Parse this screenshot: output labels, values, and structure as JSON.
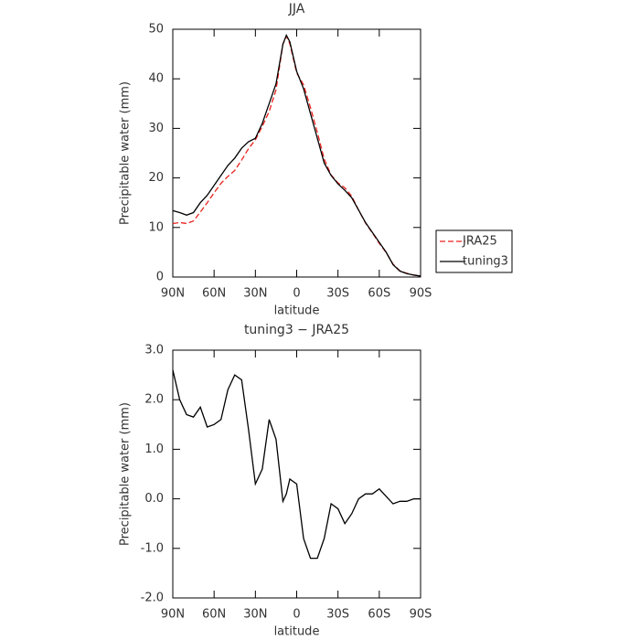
{
  "chart_data": [
    {
      "type": "line",
      "title": "JJA",
      "xlabel": "latitude",
      "ylabel": "Precipitable water (mm)",
      "x": [
        90,
        85,
        80,
        75,
        70,
        65,
        60,
        55,
        50,
        45,
        40,
        35,
        30,
        25,
        20,
        15,
        10,
        7.5,
        5,
        0,
        -5,
        -10,
        -15,
        -20,
        -25,
        -30,
        -35,
        -40,
        -45,
        -50,
        -55,
        -60,
        -65,
        -70,
        -75,
        -80,
        -85,
        -90
      ],
      "series": [
        {
          "name": "JRA25",
          "color": "#e8221c",
          "line_style": "dashed",
          "values": [
            10.8,
            11,
            10.8,
            11.3,
            13.1,
            15,
            17,
            18.9,
            20.3,
            21.5,
            23.6,
            25.9,
            27.7,
            30.4,
            33.4,
            37.8,
            47,
            48.6,
            47.1,
            41.2,
            38.8,
            34.2,
            29.2,
            23.8,
            20.6,
            19,
            18,
            16.3,
            13.5,
            10.9,
            8.9,
            6.8,
            4.95,
            2.6,
            1.25,
            0.75,
            0.4,
            0.2
          ]
        },
        {
          "name": "tuning3",
          "color": "#000000",
          "line_style": "solid",
          "values": [
            13.4,
            13,
            12.5,
            13,
            15,
            16.5,
            18.5,
            20.5,
            22.5,
            24,
            26,
            27.3,
            28,
            31,
            35,
            39,
            47,
            48.8,
            47.5,
            41.5,
            38,
            33,
            28,
            23,
            20.5,
            18.8,
            17.5,
            16,
            13.5,
            11,
            9,
            7,
            5,
            2.5,
            1.2,
            0.7,
            0.4,
            0.2
          ]
        }
      ],
      "xlim": [
        90,
        -90
      ],
      "xticks": [
        {
          "value": 90,
          "label": "90N"
        },
        {
          "value": 60,
          "label": "60N"
        },
        {
          "value": 30,
          "label": "30N"
        },
        0,
        {
          "value": -30,
          "label": "30S"
        },
        {
          "value": -60,
          "label": "60S"
        },
        {
          "value": -90,
          "label": "90S"
        }
      ],
      "ylim": [
        0,
        50
      ],
      "yticks": [
        0,
        10,
        20,
        30,
        40,
        50
      ],
      "legend": "right"
    },
    {
      "type": "line",
      "title": "tuning3 − JRA25",
      "xlabel": "latitude",
      "ylabel": "Precipitable water (mm)",
      "x": [
        90,
        85,
        80,
        75,
        70,
        65,
        60,
        55,
        50,
        45,
        40,
        35,
        30,
        25,
        20,
        15,
        10,
        7.5,
        5,
        0,
        -5,
        -10,
        -15,
        -20,
        -25,
        -30,
        -35,
        -40,
        -45,
        -50,
        -55,
        -60,
        -65,
        -70,
        -75,
        -80,
        -85,
        -90
      ],
      "values": [
        2.6,
        2.0,
        1.7,
        1.65,
        1.85,
        1.45,
        1.5,
        1.6,
        2.2,
        2.5,
        2.4,
        1.4,
        0.3,
        0.6,
        1.6,
        1.2,
        -0.05,
        0.1,
        0.4,
        0.3,
        -0.8,
        -1.2,
        -1.2,
        -0.8,
        -0.1,
        -0.2,
        -0.5,
        -0.3,
        0.0,
        0.1,
        0.1,
        0.2,
        0.05,
        -0.1,
        -0.05,
        -0.05,
        0.0,
        0.0
      ],
      "color": "#000000",
      "line_style": "solid",
      "xlim": [
        90,
        -90
      ],
      "xticks": [
        {
          "value": 90,
          "label": "90N"
        },
        {
          "value": 60,
          "label": "60N"
        },
        {
          "value": 30,
          "label": "30N"
        },
        0,
        {
          "value": -30,
          "label": "30S"
        },
        {
          "value": -60,
          "label": "60S"
        },
        {
          "value": -90,
          "label": "90S"
        }
      ],
      "ylim": [
        -2,
        3
      ],
      "yticks": [
        {
          "value": -2,
          "label": "-2.0"
        },
        {
          "value": -1,
          "label": "-1.0"
        },
        {
          "value": 0,
          "label": "0.0"
        },
        {
          "value": 1,
          "label": "1.0"
        },
        {
          "value": 2,
          "label": "2.0"
        },
        {
          "value": 3,
          "label": "3.0"
        }
      ]
    }
  ]
}
